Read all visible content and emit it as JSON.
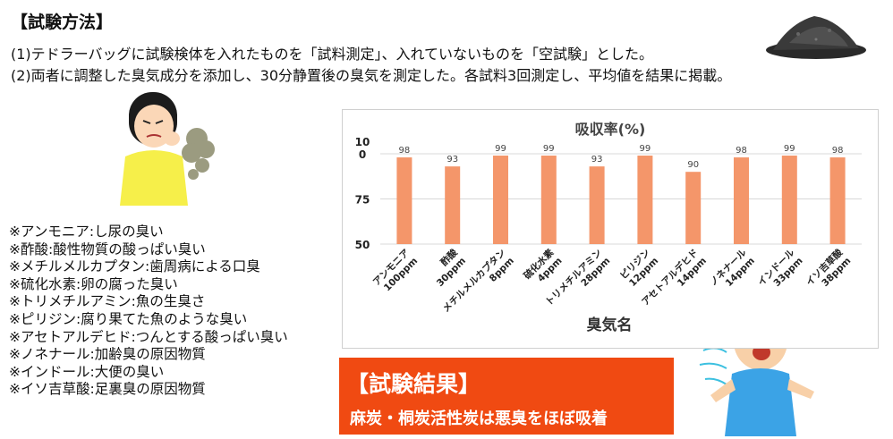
{
  "heading": "【試験方法】",
  "method_lines": [
    "(1)テドラーバッグに試験検体を入れたものを「試料測定」、入れていないものを「空試験」とした。",
    "(2)両者に調整した臭気成分を添加し、30分静置後の臭気を測定した。各試料3回測定し、平均値を結果に掲載。"
  ],
  "odor_notes": [
    "※アンモニア:し尿の臭い",
    "※酢酸:酸性物質の酸っぱい臭い",
    "※メチルメルカプタン:歯周病による口臭",
    "※硫化水素:卵の腐った臭い",
    "※トリメチルアミン:魚の生臭さ",
    "※ピリジン:腐り果てた魚のような臭い",
    "※アセトアルデヒド:つんとする酸っぱい臭い",
    "※ノネナール:加齢臭の原因物質",
    "※インドール:大便の臭い",
    "※イソ吉草酸:足裏臭の原因物質"
  ],
  "result": {
    "title": "【試験結果】",
    "text": "麻炭・桐炭活性炭は悪臭をほぼ吸着"
  },
  "chart_data": {
    "type": "bar",
    "title": "吸収率(%)",
    "xlabel": "臭気名",
    "ylabel": "",
    "ylim": [
      50,
      100
    ],
    "yticks": [
      {
        "value": 50,
        "label": "50"
      },
      {
        "value": 75,
        "label": "75"
      },
      {
        "value": 100,
        "label": "10\n0"
      }
    ],
    "grid": true,
    "categories": [
      [
        "アンモニア",
        "100ppm"
      ],
      [
        "酢酸",
        "30ppm"
      ],
      [
        "メチルメルカプタン",
        "8ppm"
      ],
      [
        "硫化水素",
        "4ppm"
      ],
      [
        "トリメチルアミン",
        "28ppm"
      ],
      [
        "ピリジン",
        "12ppm"
      ],
      [
        "アセトアルデヒド",
        "14ppm"
      ],
      [
        "ノネナール",
        "14ppm"
      ],
      [
        "インドール",
        "33ppm"
      ],
      [
        "イソ吉草酸",
        "38ppm"
      ]
    ],
    "values": [
      98,
      93,
      99,
      99,
      93,
      99,
      90,
      98,
      99,
      98
    ],
    "bar_color": "#f4966a"
  }
}
